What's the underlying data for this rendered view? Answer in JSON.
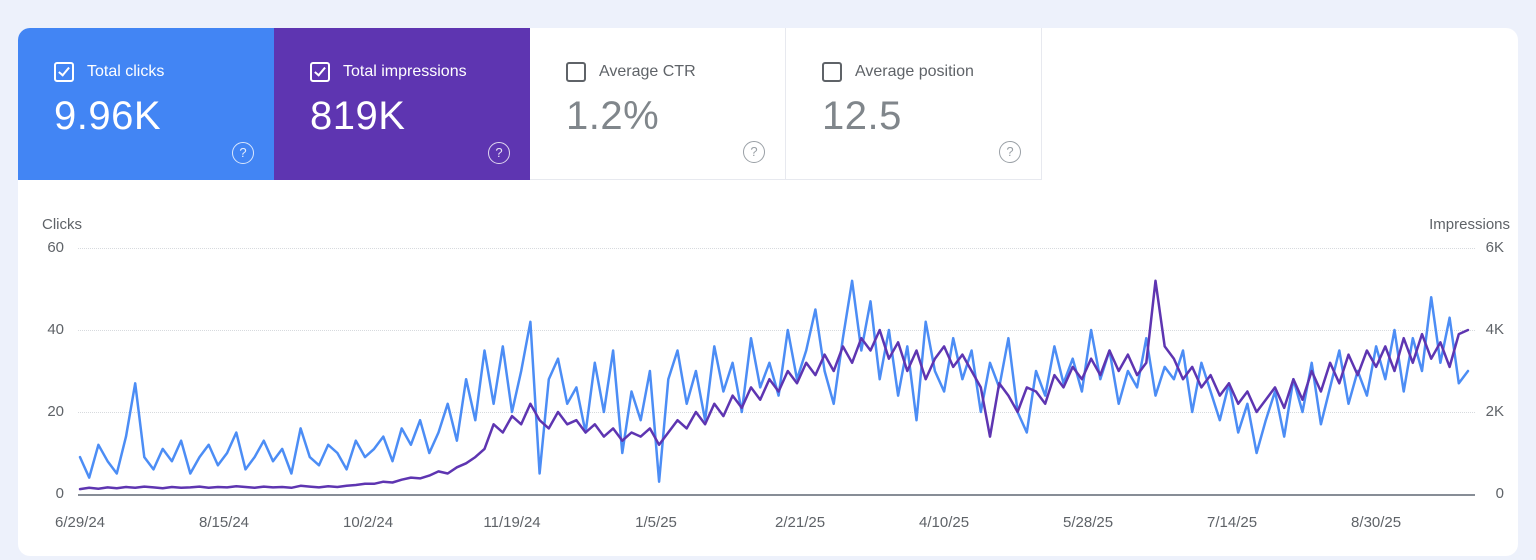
{
  "cards": [
    {
      "label": "Total clicks",
      "value": "9.96K",
      "checked": true,
      "color": "#4285f4"
    },
    {
      "label": "Total impressions",
      "value": "819K",
      "checked": true,
      "color": "#5e35b1"
    },
    {
      "label": "Average CTR",
      "value": "1.2%",
      "checked": false,
      "color": null
    },
    {
      "label": "Average position",
      "value": "12.5",
      "checked": false,
      "color": null
    }
  ],
  "help_icon_glyph": "?",
  "chart_data": {
    "type": "line",
    "left_axis": {
      "label": "Clicks",
      "ticks": [
        "0",
        "20",
        "40",
        "60"
      ],
      "range": [
        0,
        60
      ]
    },
    "right_axis": {
      "label": "Impressions",
      "ticks": [
        "0",
        "2K",
        "4K",
        "6K"
      ],
      "range": [
        0,
        6000
      ]
    },
    "grid": "dotted-horizontal",
    "days_per_point": 3,
    "x_ticks": [
      {
        "label": "6/29/24",
        "day": 0
      },
      {
        "label": "8/15/24",
        "day": 47
      },
      {
        "label": "10/2/24",
        "day": 94
      },
      {
        "label": "11/19/24",
        "day": 141
      },
      {
        "label": "1/5/25",
        "day": 188
      },
      {
        "label": "2/21/25",
        "day": 235
      },
      {
        "label": "4/10/25",
        "day": 282
      },
      {
        "label": "5/28/25",
        "day": 329
      },
      {
        "label": "7/14/25",
        "day": 376
      },
      {
        "label": "8/30/25",
        "day": 423
      }
    ],
    "series": [
      {
        "name": "Clicks",
        "axis": "left",
        "color": "#4c8df5",
        "values": [
          9,
          4,
          12,
          8,
          5,
          14,
          27,
          9,
          6,
          11,
          8,
          13,
          5,
          9,
          12,
          7,
          10,
          15,
          6,
          9,
          13,
          8,
          11,
          5,
          16,
          9,
          7,
          12,
          10,
          6,
          13,
          9,
          11,
          14,
          8,
          16,
          12,
          18,
          10,
          15,
          22,
          13,
          28,
          18,
          35,
          22,
          36,
          20,
          30,
          42,
          5,
          28,
          33,
          22,
          26,
          15,
          32,
          20,
          35,
          10,
          25,
          18,
          30,
          3,
          28,
          35,
          22,
          30,
          18,
          36,
          25,
          32,
          20,
          38,
          26,
          32,
          24,
          40,
          28,
          35,
          45,
          30,
          22,
          38,
          52,
          35,
          47,
          28,
          40,
          24,
          36,
          18,
          42,
          30,
          25,
          38,
          28,
          35,
          20,
          32,
          26,
          38,
          20,
          15,
          30,
          24,
          36,
          27,
          33,
          25,
          40,
          28,
          35,
          22,
          30,
          26,
          38,
          24,
          31,
          28,
          35,
          20,
          32,
          25,
          18,
          27,
          15,
          22,
          10,
          18,
          25,
          14,
          28,
          20,
          32,
          17,
          26,
          35,
          22,
          30,
          24,
          36,
          28,
          40,
          25,
          38,
          30,
          48,
          32,
          43,
          27,
          30
        ]
      },
      {
        "name": "Impressions",
        "axis": "right",
        "color": "#5e35b1",
        "values": [
          120,
          150,
          130,
          160,
          140,
          170,
          150,
          180,
          160,
          140,
          170,
          150,
          160,
          180,
          150,
          170,
          160,
          190,
          170,
          150,
          180,
          160,
          170,
          150,
          200,
          180,
          160,
          190,
          170,
          200,
          220,
          250,
          250,
          300,
          280,
          350,
          400,
          380,
          450,
          550,
          500,
          650,
          750,
          900,
          1100,
          1700,
          1500,
          1900,
          1700,
          2200,
          1800,
          1600,
          2000,
          1700,
          1800,
          1500,
          1700,
          1400,
          1600,
          1300,
          1500,
          1400,
          1600,
          1200,
          1500,
          1800,
          1600,
          2000,
          1700,
          2200,
          1900,
          2400,
          2100,
          2600,
          2300,
          2800,
          2500,
          3000,
          2700,
          3200,
          2900,
          3400,
          3000,
          3600,
          3200,
          3800,
          3500,
          4000,
          3300,
          3700,
          3000,
          3500,
          2800,
          3300,
          3600,
          3100,
          3400,
          3000,
          2600,
          1400,
          2700,
          2400,
          2000,
          2600,
          2500,
          2200,
          2900,
          2600,
          3100,
          2800,
          3300,
          2900,
          3500,
          3000,
          3400,
          2900,
          3200,
          5200,
          3600,
          3300,
          2800,
          3100,
          2600,
          2900,
          2400,
          2700,
          2200,
          2500,
          2000,
          2300,
          2600,
          2100,
          2800,
          2300,
          3000,
          2500,
          3200,
          2700,
          3400,
          2900,
          3500,
          3100,
          3600,
          3000,
          3800,
          3200,
          3900,
          3300,
          3700,
          3100,
          3900,
          4000
        ]
      }
    ]
  }
}
